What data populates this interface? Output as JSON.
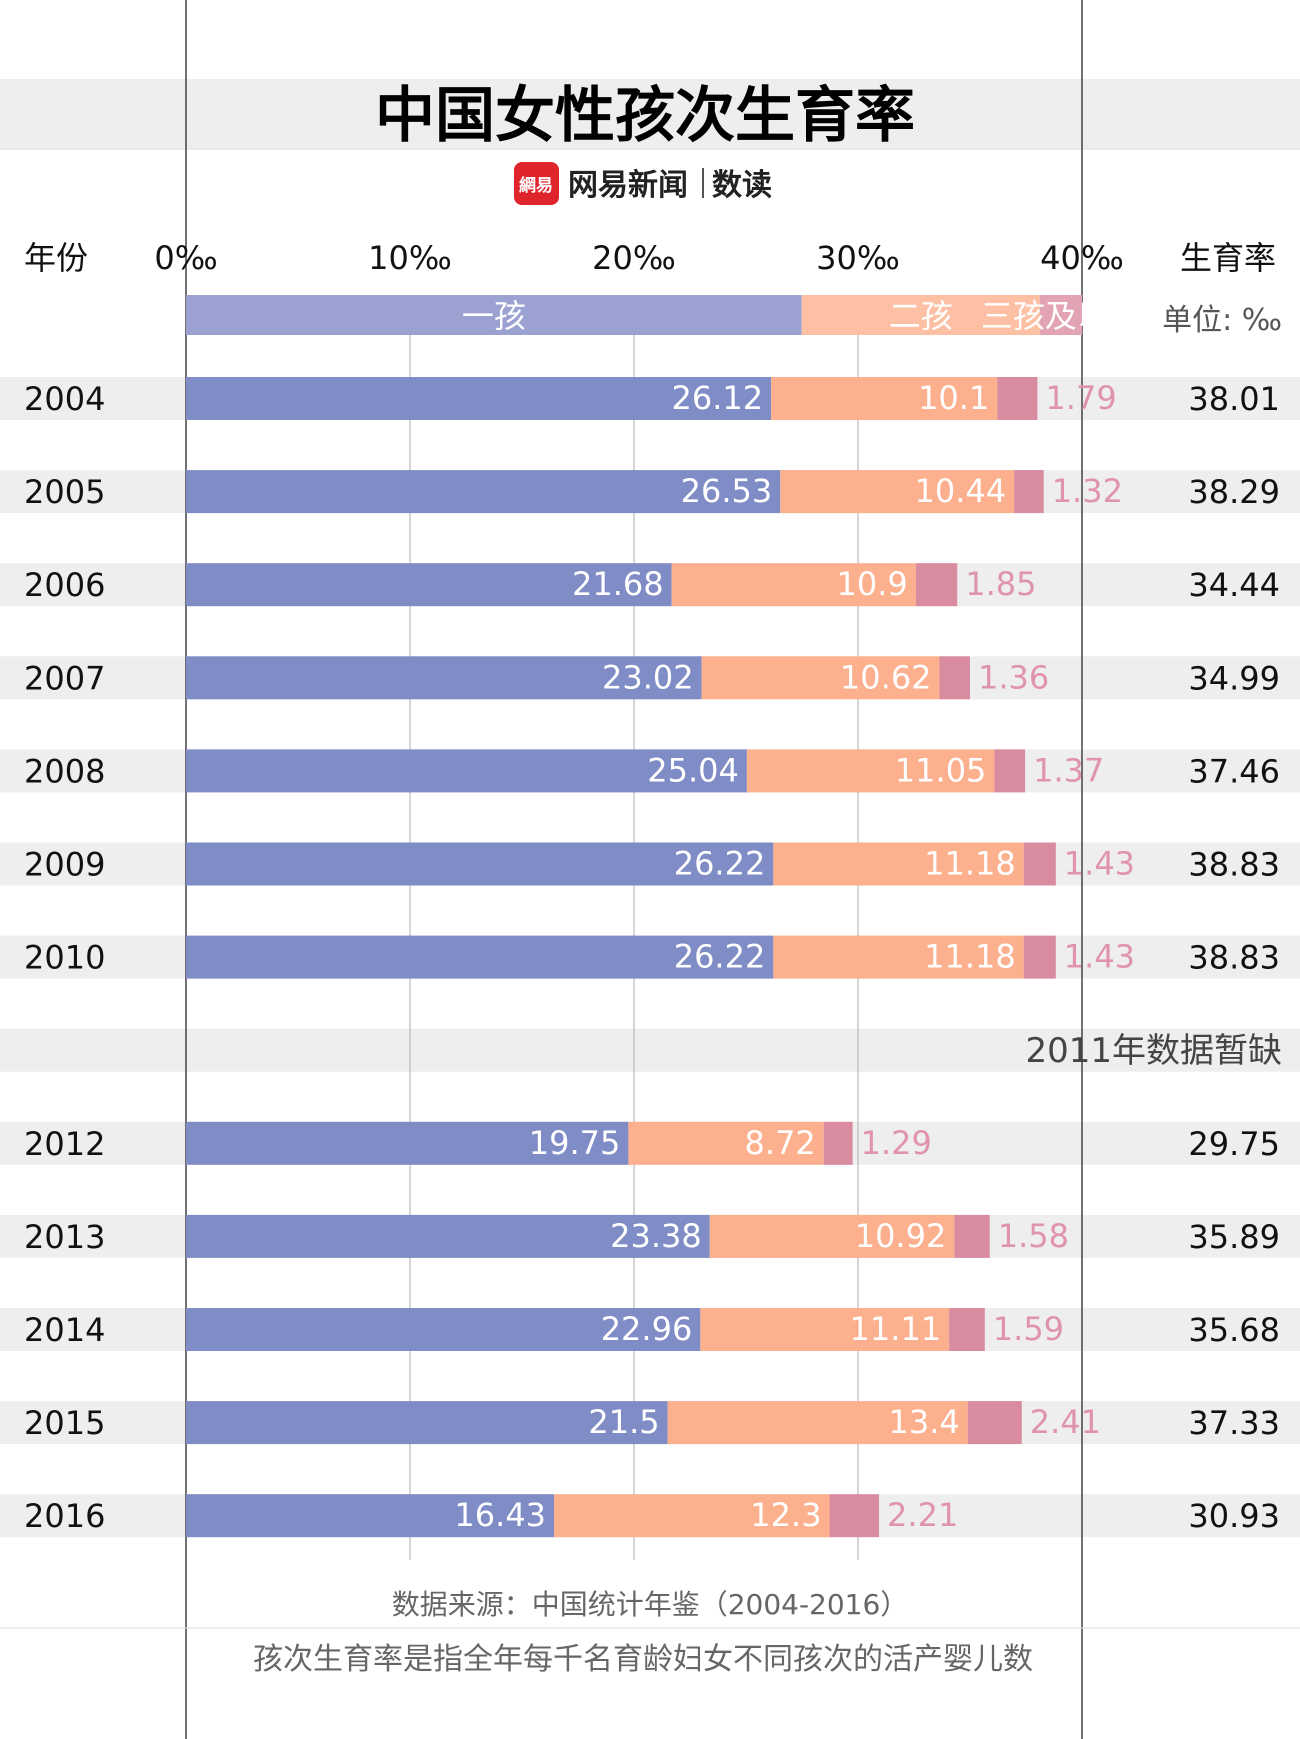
{
  "header": {
    "title": "中国女性孩次生育率",
    "brand_logo_text": "網易",
    "brand_name": "网易新闻",
    "brand_section": "数读"
  },
  "columns": {
    "year_label": "年份",
    "rate_label": "生育率",
    "unit_label": "单位: ‰"
  },
  "missing_note": "2011年数据暂缺",
  "footer": {
    "source": "数据来源：中国统计年鉴（2004-2016）",
    "definition": "孩次生育率是指全年每千名育龄妇女不同孩次的活产婴儿数"
  },
  "colors": {
    "first": "#7f8cc6",
    "second": "#fcb08e",
    "third": "#d98ba0",
    "legend_first": "#9ba2d2",
    "legend_second": "#fdc0a5",
    "legend_third": "#e2a3b5",
    "third_label": "#e094ab",
    "title": "#6b2e2e",
    "logo_red": "#e0242b",
    "band": "#eeeeee"
  },
  "chart_data": {
    "type": "bar",
    "stacked": true,
    "orientation": "horizontal",
    "x_ticks": [
      "0‰",
      "10‰",
      "20‰",
      "30‰",
      "40‰"
    ],
    "xlim": [
      0,
      40
    ],
    "series": [
      {
        "name": "一孩",
        "values": [
          26.12,
          26.53,
          21.68,
          23.02,
          25.04,
          26.22,
          26.22,
          null,
          19.75,
          23.38,
          22.96,
          21.5,
          16.43
        ]
      },
      {
        "name": "二孩",
        "values": [
          10.1,
          10.44,
          10.9,
          10.62,
          11.05,
          11.18,
          11.18,
          null,
          8.72,
          10.92,
          11.11,
          13.4,
          12.3
        ]
      },
      {
        "name": "三孩及以上",
        "values": [
          1.79,
          1.32,
          1.85,
          1.36,
          1.37,
          1.43,
          1.43,
          null,
          1.29,
          1.58,
          1.59,
          2.41,
          2.21
        ]
      }
    ],
    "categories": [
      "2004",
      "2005",
      "2006",
      "2007",
      "2008",
      "2009",
      "2010",
      "2011",
      "2012",
      "2013",
      "2014",
      "2015",
      "2016"
    ],
    "totals": [
      "38.01",
      "38.29",
      "34.44",
      "34.99",
      "37.46",
      "38.83",
      "38.83",
      null,
      "29.75",
      "35.89",
      "35.68",
      "37.33",
      "30.93"
    ],
    "labels": [
      [
        "26.12",
        "10.1",
        "1.79"
      ],
      [
        "26.53",
        "10.44",
        "1.32"
      ],
      [
        "21.68",
        "10.9",
        "1.85"
      ],
      [
        "23.02",
        "10.62",
        "1.36"
      ],
      [
        "25.04",
        "11.05",
        "1.37"
      ],
      [
        "26.22",
        "11.18",
        "1.43"
      ],
      [
        "26.22",
        "11.18",
        "1.43"
      ],
      null,
      [
        "19.75",
        "8.72",
        "1.29"
      ],
      [
        "23.38",
        "10.92",
        "1.58"
      ],
      [
        "22.96",
        "11.11",
        "1.59"
      ],
      [
        "21.5",
        "13.4",
        "2.41"
      ],
      [
        "16.43",
        "12.3",
        "2.21"
      ]
    ]
  }
}
